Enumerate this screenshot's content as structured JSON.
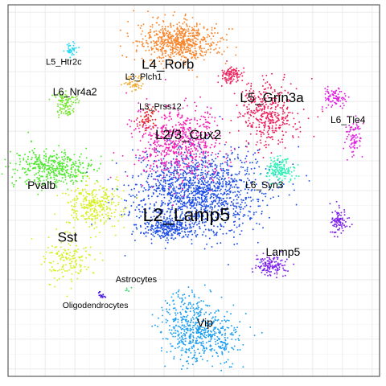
{
  "chart_data": {
    "type": "scatter",
    "title": "",
    "xlabel": "",
    "ylabel": "",
    "xlim": [
      0,
      100
    ],
    "ylim": [
      0,
      100
    ],
    "grid": true,
    "legend": "none",
    "series": [
      {
        "name": "L4_Rorb",
        "color": "#f8862c",
        "label_size": 17,
        "label_at": [
          43,
          84
        ],
        "n": 650,
        "blobs": [
          {
            "x": 46,
            "y": 90,
            "sx": 5.2,
            "sy": 2.6,
            "w": 1
          }
        ]
      },
      {
        "name": "L2_Lamp5",
        "color": "#1f4fe6",
        "label_size": 23,
        "label_at": [
          48,
          43.5
        ],
        "n": 1700,
        "blobs": [
          {
            "x": 51,
            "y": 50,
            "sx": 8.6,
            "sy": 5.8,
            "w": 0.85
          },
          {
            "x": 43,
            "y": 40,
            "sx": 3.5,
            "sy": 1.4,
            "w": 0.15
          }
        ]
      },
      {
        "name": "L2/3_Cux2",
        "color": "#f31fb2",
        "label_size": 17,
        "label_at": [
          48.5,
          65
        ],
        "n": 650,
        "blobs": [
          {
            "x": 46,
            "y": 63,
            "sx": 5.8,
            "sy": 5,
            "w": 1
          }
        ]
      },
      {
        "name": "L5_Grin3a",
        "color": "#ec1f5a",
        "label_size": 17,
        "label_at": [
          71,
          75
        ],
        "n": 500,
        "blobs": [
          {
            "x": 70,
            "y": 71,
            "sx": 4,
            "sy": 4.5,
            "w": 0.8
          },
          {
            "x": 60,
            "y": 81,
            "sx": 1.3,
            "sy": 1.2,
            "w": 0.2
          }
        ]
      },
      {
        "name": "L6_Syn3",
        "color": "#2cf0b5",
        "label_size": 12,
        "label_at": [
          69,
          51.5
        ],
        "n": 160,
        "blobs": [
          {
            "x": 73,
            "y": 55.5,
            "sx": 1.9,
            "sy": 1.6,
            "w": 1
          }
        ]
      },
      {
        "name": "L6_Tle4",
        "color": "#e023e0",
        "label_size": 12,
        "label_at": [
          91.5,
          69
        ],
        "n": 170,
        "blobs": [
          {
            "x": 88,
            "y": 75,
            "sx": 1.6,
            "sy": 1.2,
            "w": 0.5
          },
          {
            "x": 93,
            "y": 64.5,
            "sx": 1.2,
            "sy": 2.6,
            "w": 0.5
          }
        ]
      },
      {
        "name": "L3_Plch1",
        "color": "#f0a92d",
        "label_size": 11,
        "label_at": [
          36.5,
          80.5
        ],
        "n": 50,
        "blobs": [
          {
            "x": 34,
            "y": 79,
            "sx": 1.1,
            "sy": 0.9,
            "w": 1
          }
        ]
      },
      {
        "name": "L3_Prss12",
        "color": "#e61f1f",
        "label_size": 11,
        "label_at": [
          41,
          72.5
        ],
        "n": 55,
        "blobs": [
          {
            "x": 37.5,
            "y": 69.5,
            "sx": 1.2,
            "sy": 1.6,
            "w": 1
          }
        ]
      },
      {
        "name": "L5_Htr2c",
        "color": "#27d9f0",
        "label_size": 11,
        "label_at": [
          15,
          84.5
        ],
        "n": 40,
        "blobs": [
          {
            "x": 17,
            "y": 88,
            "sx": 0.9,
            "sy": 0.8,
            "w": 1
          }
        ]
      },
      {
        "name": "L6_Nr4a2",
        "color": "#74e62c",
        "label_size": 12.5,
        "label_at": [
          18,
          76.5
        ],
        "n": 110,
        "blobs": [
          {
            "x": 15.5,
            "y": 73.5,
            "sx": 1.6,
            "sy": 1.8,
            "w": 1
          }
        ]
      },
      {
        "name": "Pvalb",
        "color": "#4ee82c",
        "label_size": 14,
        "label_at": [
          9,
          51.5
        ],
        "n": 420,
        "blobs": [
          {
            "x": 12,
            "y": 56,
            "sx": 5.5,
            "sy": 2.4,
            "w": 1
          }
        ]
      },
      {
        "name": "Sst",
        "color": "#d6f01e",
        "label_size": 17,
        "label_at": [
          16,
          37.5
        ],
        "n": 450,
        "blobs": [
          {
            "x": 23,
            "y": 46,
            "sx": 3.8,
            "sy": 3.2,
            "w": 0.65
          },
          {
            "x": 16,
            "y": 31,
            "sx": 3.3,
            "sy": 3.2,
            "w": 0.35
          }
        ]
      },
      {
        "name": "Lamp5",
        "color": "#7e20ec",
        "label_size": 14,
        "label_at": [
          74,
          33.5
        ],
        "n": 220,
        "blobs": [
          {
            "x": 71,
            "y": 30,
            "sx": 2.2,
            "sy": 1.4,
            "w": 0.6
          },
          {
            "x": 89,
            "y": 41.5,
            "sx": 1.2,
            "sy": 1.8,
            "w": 0.4
          }
        ]
      },
      {
        "name": "Vip",
        "color": "#1e9ff0",
        "label_size": 14,
        "label_at": [
          53,
          14.5
        ],
        "n": 600,
        "blobs": [
          {
            "x": 49,
            "y": 13,
            "sx": 3.8,
            "sy": 4.5,
            "w": 0.7
          },
          {
            "x": 57,
            "y": 11,
            "sx": 3,
            "sy": 3.8,
            "w": 0.3
          }
        ]
      },
      {
        "name": "Astrocytes",
        "color": "#2ce06a",
        "label_size": 11,
        "label_at": [
          34.5,
          26
        ],
        "n": 5,
        "blobs": [
          {
            "x": 32.5,
            "y": 23,
            "sx": 0.5,
            "sy": 0.4,
            "w": 1
          }
        ]
      },
      {
        "name": "Oligodendrocytes",
        "color": "#4410e0",
        "label_size": 10.5,
        "label_at": [
          23.5,
          19
        ],
        "n": 14,
        "blobs": [
          {
            "x": 25,
            "y": 21.5,
            "sx": 0.6,
            "sy": 0.6,
            "w": 1
          }
        ]
      }
    ]
  }
}
